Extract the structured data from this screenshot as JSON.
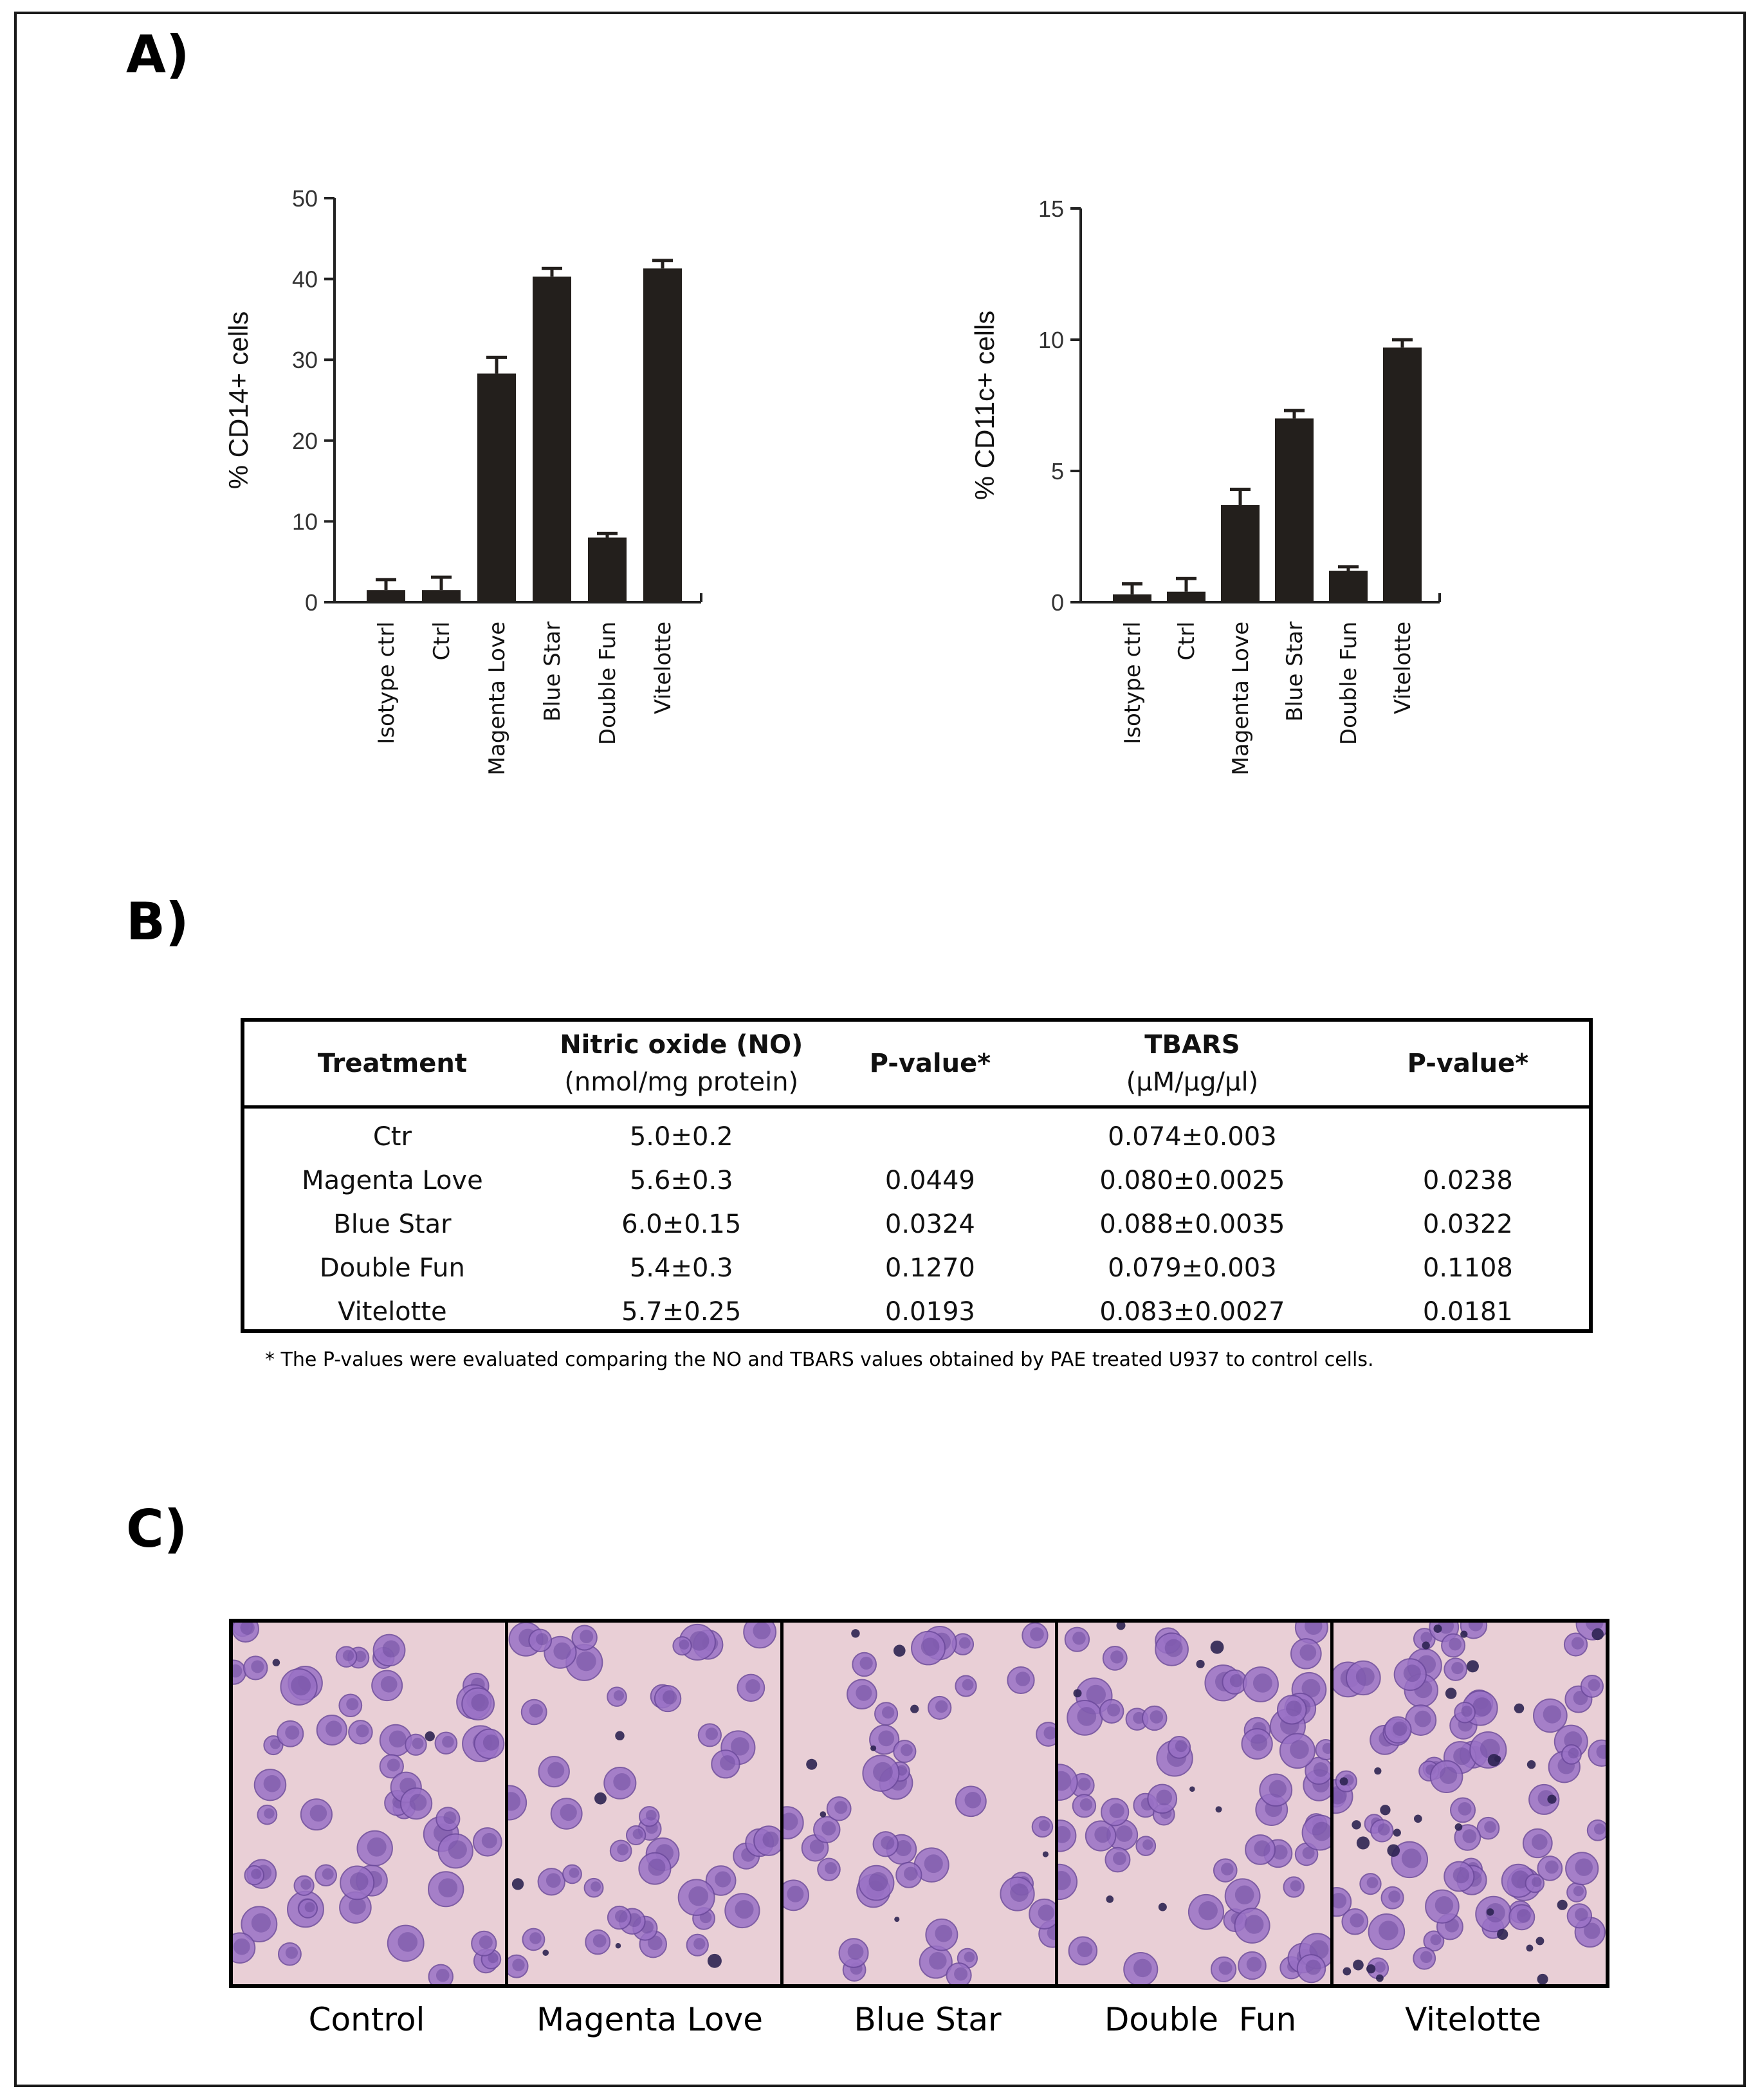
{
  "panels": {
    "a_label": "A)",
    "b_label": "B)",
    "c_label": "C)"
  },
  "chart_data": [
    {
      "type": "bar",
      "ylabel": "% CD14+ cells",
      "categories": [
        "Isotype ctrl",
        "Ctrl",
        "Magenta Love",
        "Blue Star",
        "Double Fun",
        "Vitelotte"
      ],
      "values": [
        1.5,
        1.5,
        28.3,
        40.3,
        8.0,
        41.3
      ],
      "errors": [
        1.3,
        1.6,
        2.0,
        1.0,
        0.5,
        1.0
      ],
      "ylim": [
        0,
        50
      ],
      "yticks": [
        0,
        10,
        20,
        30,
        40,
        50
      ],
      "bar_color": "#231f1c"
    },
    {
      "type": "bar",
      "ylabel": "% CD11c+ cells",
      "categories": [
        "Isotype ctrl",
        "Ctrl",
        "Magenta Love",
        "Blue Star",
        "Double Fun",
        "Vitelotte"
      ],
      "values": [
        0.3,
        0.4,
        3.7,
        7.0,
        1.2,
        9.7
      ],
      "errors": [
        0.4,
        0.5,
        0.6,
        0.3,
        0.15,
        0.3
      ],
      "ylim": [
        0,
        15
      ],
      "yticks": [
        0,
        5,
        10,
        15
      ],
      "bar_color": "#231f1c"
    }
  ],
  "table": {
    "headers": [
      {
        "title": "Treatment",
        "unit": ""
      },
      {
        "title": "Nitric oxide (NO)",
        "unit": "(nmol/mg protein)"
      },
      {
        "title": "P-value*",
        "unit": ""
      },
      {
        "title": "TBARS",
        "unit": "(μM/μg/μl)"
      },
      {
        "title": "P-value*",
        "unit": ""
      }
    ],
    "rows": [
      [
        "Ctr",
        "5.0±0.2",
        "",
        "0.074±0.003",
        ""
      ],
      [
        "Magenta Love",
        "5.6±0.3",
        "0.0449",
        "0.080±0.0025",
        "0.0238"
      ],
      [
        "Blue Star",
        "6.0±0.15",
        "0.0324",
        "0.088±0.0035",
        "0.0322"
      ],
      [
        "Double Fun",
        "5.4±0.3",
        "0.1270",
        "0.079±0.003",
        "0.1108"
      ],
      [
        "Vitelotte",
        "5.7±0.25",
        "0.0193",
        "0.083±0.0027",
        "0.0181"
      ]
    ],
    "footnote": "* The P-values were evaluated comparing the NO and TBARS values obtained by PAE treated U937 to control cells."
  },
  "micrographs": {
    "captions": [
      "Control",
      "Magenta Love",
      "Blue Star",
      "Double  Fun",
      "Vitelotte"
    ],
    "colors": {
      "background": "#e9cfd6",
      "cell": "#9a72c6",
      "cell_dark": "#6c4a9c",
      "debris": "#2d2452"
    }
  }
}
